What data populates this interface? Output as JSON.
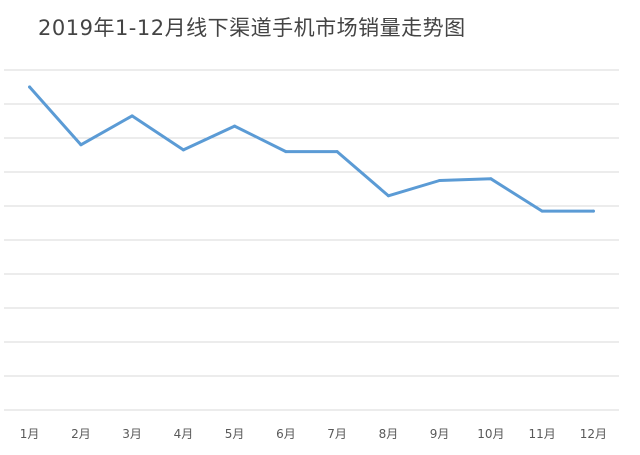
{
  "chart_data": {
    "type": "line",
    "title": "2019年1-12月线下渠道手机市场销量走势图",
    "categories": [
      "1月",
      "2月",
      "3月",
      "4月",
      "5月",
      "6月",
      "7月",
      "8月",
      "9月",
      "10月",
      "11月",
      "12月"
    ],
    "series": [
      {
        "values": [
          9.5,
          7.8,
          8.65,
          7.65,
          8.35,
          7.6,
          7.6,
          6.3,
          6.75,
          6.8,
          5.85,
          5.85
        ]
      }
    ],
    "ylim": [
      0,
      10
    ],
    "yticks": [
      0,
      1,
      2,
      3,
      4,
      5,
      6,
      7,
      8,
      9,
      10
    ],
    "y_axis_labels_visible": false,
    "grid": true,
    "legend": "none",
    "line_color": "#5b9bd5",
    "grid_color": "#d9d9d9"
  }
}
